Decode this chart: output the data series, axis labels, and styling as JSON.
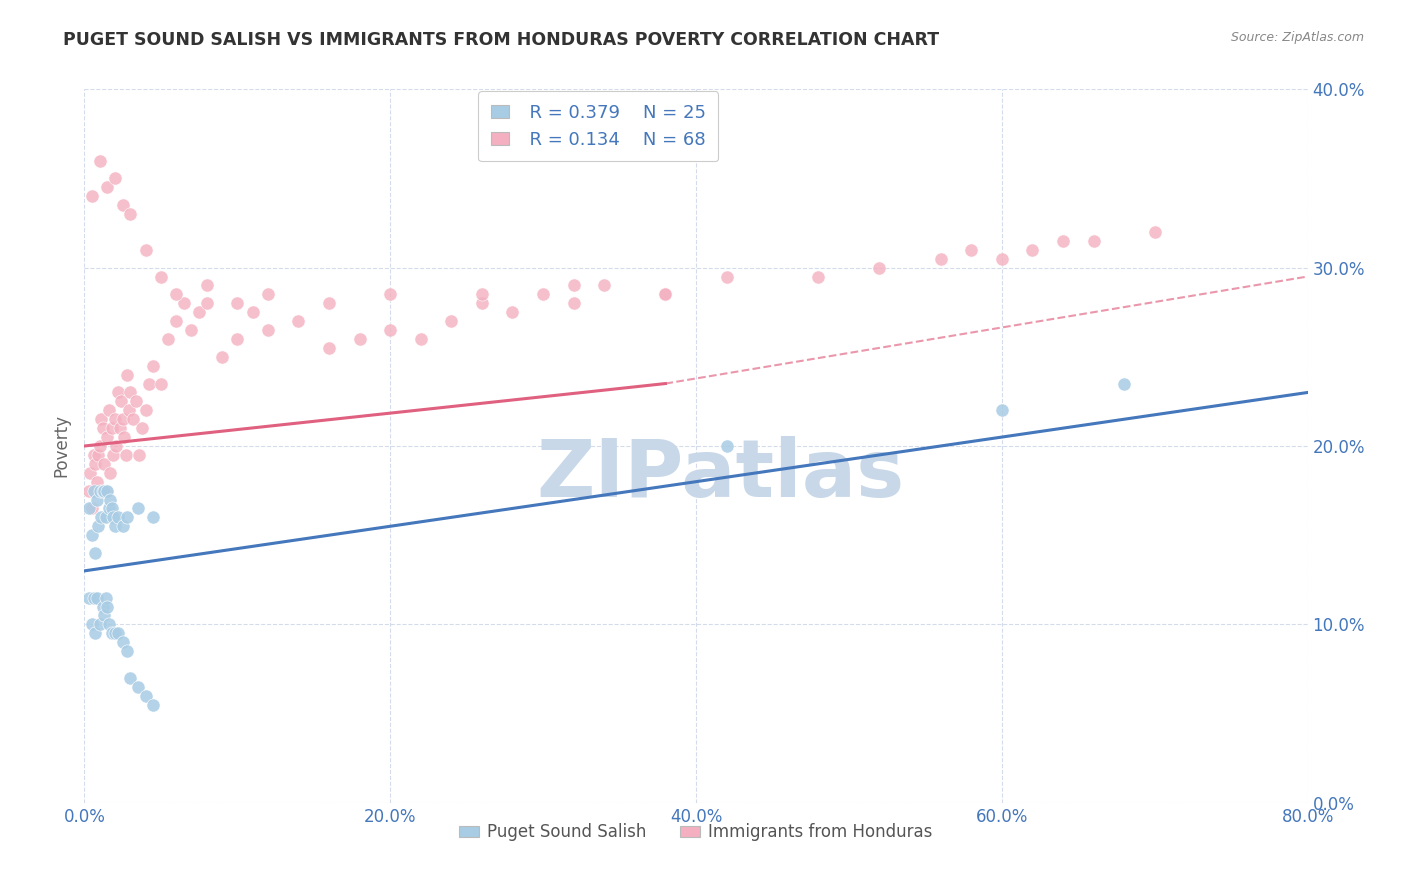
{
  "title": "PUGET SOUND SALISH VS IMMIGRANTS FROM HONDURAS POVERTY CORRELATION CHART",
  "source": "Source: ZipAtlas.com",
  "ylabel": "Poverty",
  "xlim": [
    0,
    0.8
  ],
  "ylim": [
    0,
    0.4
  ],
  "xticks": [
    0.0,
    0.2,
    0.4,
    0.6,
    0.8
  ],
  "yticks": [
    0.0,
    0.1,
    0.2,
    0.3,
    0.4
  ],
  "legend_label1": "Puget Sound Salish",
  "legend_label2": "Immigrants from Honduras",
  "r1": 0.379,
  "n1": 25,
  "r2": 0.134,
  "n2": 68,
  "color_blue": "#a8cce4",
  "color_pink": "#f4b0c0",
  "color_blue_line": "#4477bb",
  "color_pink_line": "#e06080",
  "blue_x": [
    0.003,
    0.005,
    0.006,
    0.007,
    0.008,
    0.009,
    0.01,
    0.011,
    0.012,
    0.013,
    0.014,
    0.015,
    0.016,
    0.017,
    0.018,
    0.019,
    0.02,
    0.022,
    0.025,
    0.028,
    0.035,
    0.045,
    0.42,
    0.6,
    0.68
  ],
  "blue_y": [
    0.165,
    0.15,
    0.175,
    0.14,
    0.17,
    0.155,
    0.175,
    0.16,
    0.175,
    0.175,
    0.16,
    0.175,
    0.165,
    0.17,
    0.165,
    0.16,
    0.155,
    0.16,
    0.155,
    0.16,
    0.165,
    0.16,
    0.2,
    0.22,
    0.235
  ],
  "blue_low_x": [
    0.003,
    0.005,
    0.006,
    0.007,
    0.008,
    0.01,
    0.012,
    0.013,
    0.014,
    0.015,
    0.016,
    0.018,
    0.02,
    0.022,
    0.025,
    0.028,
    0.03,
    0.035,
    0.04,
    0.045
  ],
  "blue_low_y": [
    0.115,
    0.1,
    0.115,
    0.095,
    0.115,
    0.1,
    0.11,
    0.105,
    0.115,
    0.11,
    0.1,
    0.095,
    0.095,
    0.095,
    0.09,
    0.085,
    0.07,
    0.065,
    0.06,
    0.055
  ],
  "pink_x": [
    0.003,
    0.004,
    0.005,
    0.006,
    0.007,
    0.008,
    0.009,
    0.01,
    0.011,
    0.012,
    0.013,
    0.014,
    0.015,
    0.016,
    0.017,
    0.018,
    0.019,
    0.02,
    0.021,
    0.022,
    0.023,
    0.024,
    0.025,
    0.026,
    0.027,
    0.028,
    0.029,
    0.03,
    0.032,
    0.034,
    0.036,
    0.038,
    0.04,
    0.042,
    0.045,
    0.05,
    0.055,
    0.06,
    0.065,
    0.07,
    0.075,
    0.08,
    0.09,
    0.1,
    0.11,
    0.12,
    0.14,
    0.16,
    0.18,
    0.2,
    0.22,
    0.24,
    0.26,
    0.28,
    0.3,
    0.32,
    0.34,
    0.38,
    0.42,
    0.48,
    0.52,
    0.56,
    0.58,
    0.6,
    0.62,
    0.64,
    0.66,
    0.7
  ],
  "pink_y": [
    0.175,
    0.185,
    0.165,
    0.195,
    0.19,
    0.18,
    0.195,
    0.2,
    0.215,
    0.21,
    0.19,
    0.175,
    0.205,
    0.22,
    0.185,
    0.21,
    0.195,
    0.215,
    0.2,
    0.23,
    0.21,
    0.225,
    0.215,
    0.205,
    0.195,
    0.24,
    0.22,
    0.23,
    0.215,
    0.225,
    0.195,
    0.21,
    0.22,
    0.235,
    0.245,
    0.235,
    0.26,
    0.27,
    0.28,
    0.265,
    0.275,
    0.28,
    0.25,
    0.26,
    0.275,
    0.265,
    0.27,
    0.255,
    0.26,
    0.265,
    0.26,
    0.27,
    0.28,
    0.275,
    0.285,
    0.28,
    0.29,
    0.285,
    0.295,
    0.295,
    0.3,
    0.305,
    0.31,
    0.305,
    0.31,
    0.315,
    0.315,
    0.32
  ],
  "pink_high_x": [
    0.005,
    0.01,
    0.015,
    0.02,
    0.025,
    0.03,
    0.04,
    0.05,
    0.06,
    0.08,
    0.1,
    0.12,
    0.16,
    0.2,
    0.26,
    0.32,
    0.38
  ],
  "pink_high_y": [
    0.34,
    0.36,
    0.345,
    0.35,
    0.335,
    0.33,
    0.31,
    0.295,
    0.285,
    0.29,
    0.28,
    0.285,
    0.28,
    0.285,
    0.285,
    0.29,
    0.285
  ],
  "watermark_text": "ZIPatlas",
  "watermark_color": "#c8d8e8",
  "background_color": "#ffffff",
  "tick_color": "#4477bb",
  "title_color": "#333333",
  "source_color": "#888888"
}
